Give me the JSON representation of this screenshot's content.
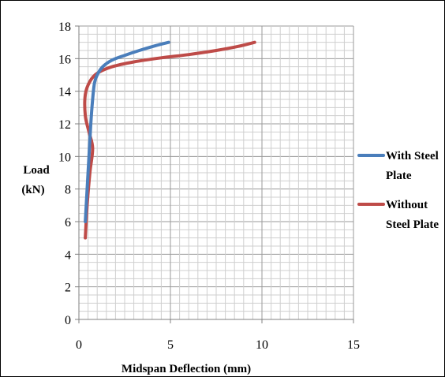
{
  "chart_data": {
    "type": "line",
    "xlabel": "Midspan Deflection (mm)",
    "ylabel_lines": [
      "Load",
      "(kN)"
    ],
    "xlim": [
      0,
      15
    ],
    "ylim": [
      0,
      18
    ],
    "xticks": [
      0,
      5,
      10,
      15
    ],
    "yticks": [
      0,
      2,
      4,
      6,
      8,
      10,
      12,
      14,
      16,
      18
    ],
    "grid": true,
    "legend_position": "right",
    "series": [
      {
        "name_lines": [
          "With Steel",
          "Plate"
        ],
        "color": "#4a7ebb",
        "x": [
          0.35,
          0.45,
          0.55,
          0.65,
          0.75,
          0.85,
          1.0,
          1.3,
          1.8,
          2.5,
          3.3,
          4.2,
          4.9
        ],
        "y": [
          6.0,
          8.0,
          10.0,
          12.0,
          13.5,
          14.5,
          15.0,
          15.5,
          15.9,
          16.2,
          16.5,
          16.8,
          17.0
        ]
      },
      {
        "name_lines": [
          "Without",
          "Steel Plate"
        ],
        "color": "#be4b48",
        "x": [
          0.35,
          0.45,
          0.6,
          0.75,
          0.55,
          0.35,
          0.35,
          0.6,
          1.0,
          1.8,
          3.0,
          4.5,
          6.0,
          7.5,
          8.7,
          9.6
        ],
        "y": [
          5.0,
          7.0,
          9.0,
          10.5,
          11.5,
          12.5,
          13.8,
          14.6,
          15.1,
          15.5,
          15.8,
          16.05,
          16.25,
          16.5,
          16.75,
          17.0
        ]
      }
    ]
  }
}
